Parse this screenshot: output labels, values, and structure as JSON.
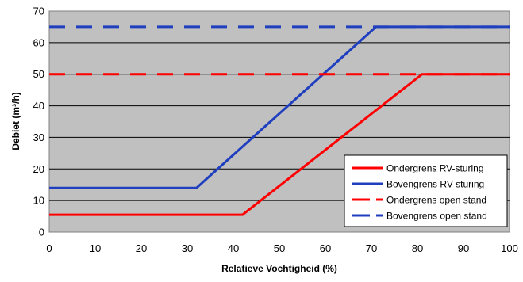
{
  "chart_data": {
    "type": "line",
    "title": "",
    "xlabel": "Relatieve Vochtigheid (%)",
    "ylabel": "Debiet (m³/h)",
    "xlim": [
      0,
      100
    ],
    "ylim": [
      0,
      70
    ],
    "xticks": [
      0,
      10,
      20,
      30,
      40,
      50,
      60,
      70,
      80,
      90,
      100
    ],
    "yticks": [
      0,
      10,
      20,
      30,
      40,
      50,
      60,
      70
    ],
    "grid": "horizontal",
    "legend_position": "bottom-right",
    "series": [
      {
        "name": "Ondergrens RV-sturing",
        "color": "#ff0000",
        "style": "solid",
        "points": [
          [
            0,
            5.5
          ],
          [
            42,
            5.5
          ],
          [
            81,
            50
          ],
          [
            100,
            50
          ]
        ]
      },
      {
        "name": "Bovengrens RV-sturing",
        "color": "#1f3fbf",
        "style": "solid",
        "points": [
          [
            0,
            14
          ],
          [
            32,
            14
          ],
          [
            71,
            65
          ],
          [
            100,
            65
          ]
        ]
      },
      {
        "name": "Ondergrens open stand",
        "color": "#ff0000",
        "style": "dashed",
        "points": [
          [
            0,
            50
          ],
          [
            100,
            50
          ]
        ]
      },
      {
        "name": "Bovengrens open stand",
        "color": "#1f3fbf",
        "style": "dashed",
        "points": [
          [
            0,
            65
          ],
          [
            100,
            65
          ]
        ]
      }
    ]
  }
}
